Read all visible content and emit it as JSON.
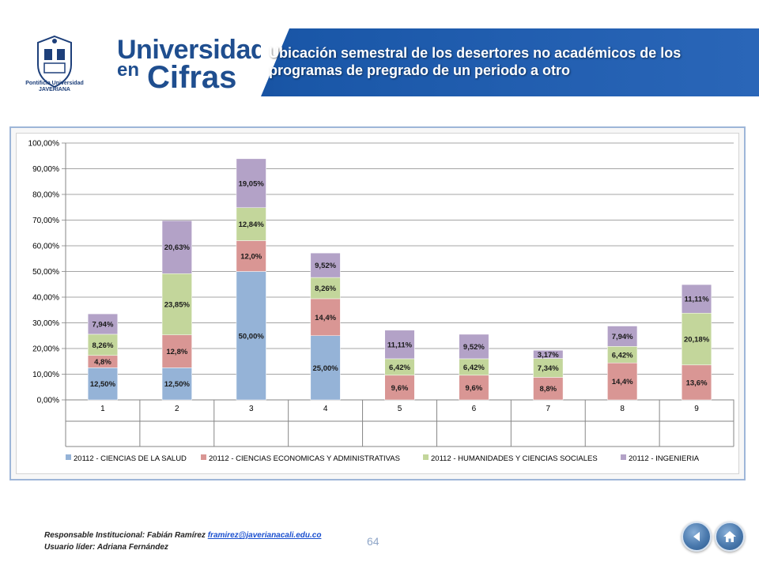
{
  "header": {
    "crest_label": "Pontificia Universidad JAVERIANA",
    "brand_line1": "Universidad",
    "brand_en": "en",
    "brand_cifras": "Cifras",
    "title": "Ubicación semestral de los desertores no académicos de los programas de pregrado de un periodo a otro"
  },
  "chart_data": {
    "type": "bar",
    "stacked": true,
    "categories": [
      "1",
      "2",
      "3",
      "4",
      "5",
      "6",
      "7",
      "8",
      "9"
    ],
    "ylim": [
      0,
      100
    ],
    "yticks": [
      "0,00%",
      "10,00%",
      "20,00%",
      "30,00%",
      "40,00%",
      "50,00%",
      "60,00%",
      "70,00%",
      "80,00%",
      "90,00%",
      "100,00%"
    ],
    "grid": true,
    "legend_position": "bottom",
    "series": [
      {
        "name": "20112 - CIENCIAS DE LA SALUD",
        "color": "#95b3d7",
        "values": [
          12.5,
          12.5,
          50.0,
          25.0,
          0,
          0,
          0,
          0,
          0
        ],
        "labels": [
          "12,50%",
          "12,50%",
          "50,00%",
          "25,00%",
          "",
          "",
          "",
          "",
          ""
        ]
      },
      {
        "name": "20112 - CIENCIAS ECONOMICAS Y ADMINISTRATIVAS",
        "color": "#d99694",
        "values": [
          4.8,
          12.8,
          12.0,
          14.4,
          9.6,
          9.6,
          8.8,
          14.4,
          13.6
        ],
        "labels": [
          "4,8%",
          "12,8%",
          "12,0%",
          "14,4%",
          "9,6%",
          "9,6%",
          "8,8%",
          "14,4%",
          "13,6%"
        ]
      },
      {
        "name": "20112 - HUMANIDADES Y CIENCIAS SOCIALES",
        "color": "#c3d69b",
        "values": [
          8.26,
          23.85,
          12.84,
          8.26,
          6.42,
          6.42,
          7.34,
          6.42,
          20.18
        ],
        "labels": [
          "8,26%",
          "23,85%",
          "12,84%",
          "8,26%",
          "6,42%",
          "6,42%",
          "7,34%",
          "6,42%",
          "20,18%"
        ]
      },
      {
        "name": "20112 - INGENIERIA",
        "color": "#b3a2c7",
        "values": [
          7.94,
          20.63,
          19.05,
          9.52,
          11.11,
          9.52,
          3.17,
          7.94,
          11.11
        ],
        "labels": [
          "7,94%",
          "20,63%",
          "19,05%",
          "9,52%",
          "11,11%",
          "9,52%",
          "3,17%",
          "7,94%",
          "11,11%"
        ]
      }
    ]
  },
  "footer": {
    "responsible_label": "Responsable Institucional: Fabián Ramírez",
    "email": "framirez@javerianacali.edu.co",
    "leader_label": "Usuario líder: Adriana Fernández",
    "page_number": "64"
  },
  "nav": {
    "back_icon": "back-arrow-icon",
    "home_icon": "home-icon"
  }
}
